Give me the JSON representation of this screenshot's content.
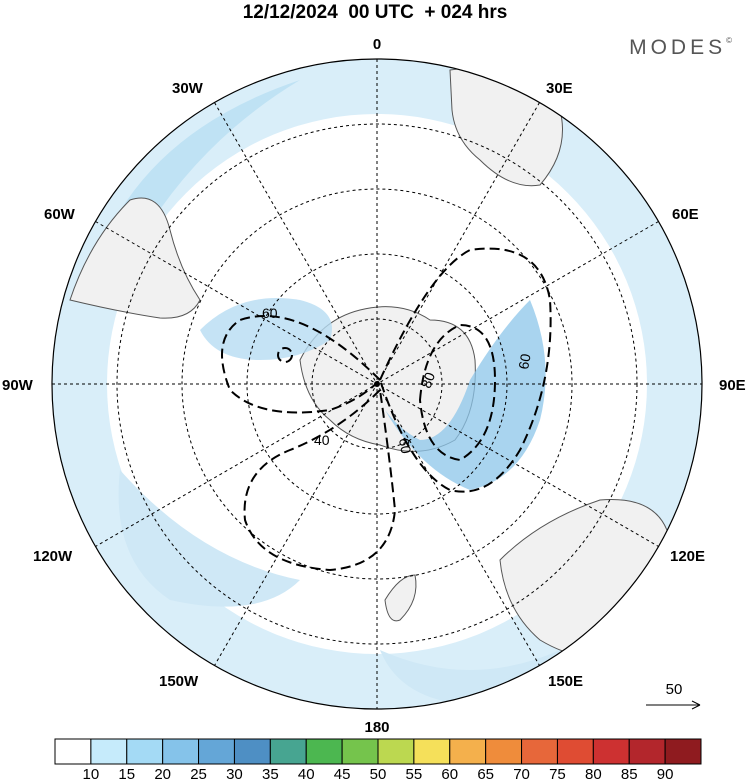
{
  "title": "12/12/2024  00 UTC  + 024 hrs",
  "brand": "MODES",
  "brand_mark": "©",
  "longitude_labels": {
    "n": "0",
    "s": "180",
    "e": "90E",
    "w": "90W",
    "ne30": "30E",
    "ne60": "60E",
    "nw30": "30W",
    "nw60": "60W",
    "se120": "120E",
    "se150": "150E",
    "sw120": "120W",
    "sw150": "150W"
  },
  "contour_labels": [
    "60",
    "60",
    "40",
    "80",
    "60"
  ],
  "reference_vector": {
    "label": "50"
  },
  "colorbar": {
    "ticks": [
      "10",
      "15",
      "20",
      "25",
      "30",
      "35",
      "40",
      "45",
      "50",
      "55",
      "60",
      "65",
      "70",
      "75",
      "80",
      "85",
      "90"
    ],
    "colors": [
      "#ffffff",
      "#c6ebfb",
      "#a4daf5",
      "#85c3ea",
      "#64a6d7",
      "#4e8fc4",
      "#47a591",
      "#4cb750",
      "#75c44c",
      "#bcd850",
      "#f5e05a",
      "#f4b04c",
      "#ef8c3b",
      "#e7673a",
      "#df4c33",
      "#cd3131",
      "#b3262c",
      "#8f1b1f"
    ]
  },
  "colors": {
    "land": "#f1f1f1",
    "coast": "#555555",
    "wind_shade": "#cde8f7"
  }
}
